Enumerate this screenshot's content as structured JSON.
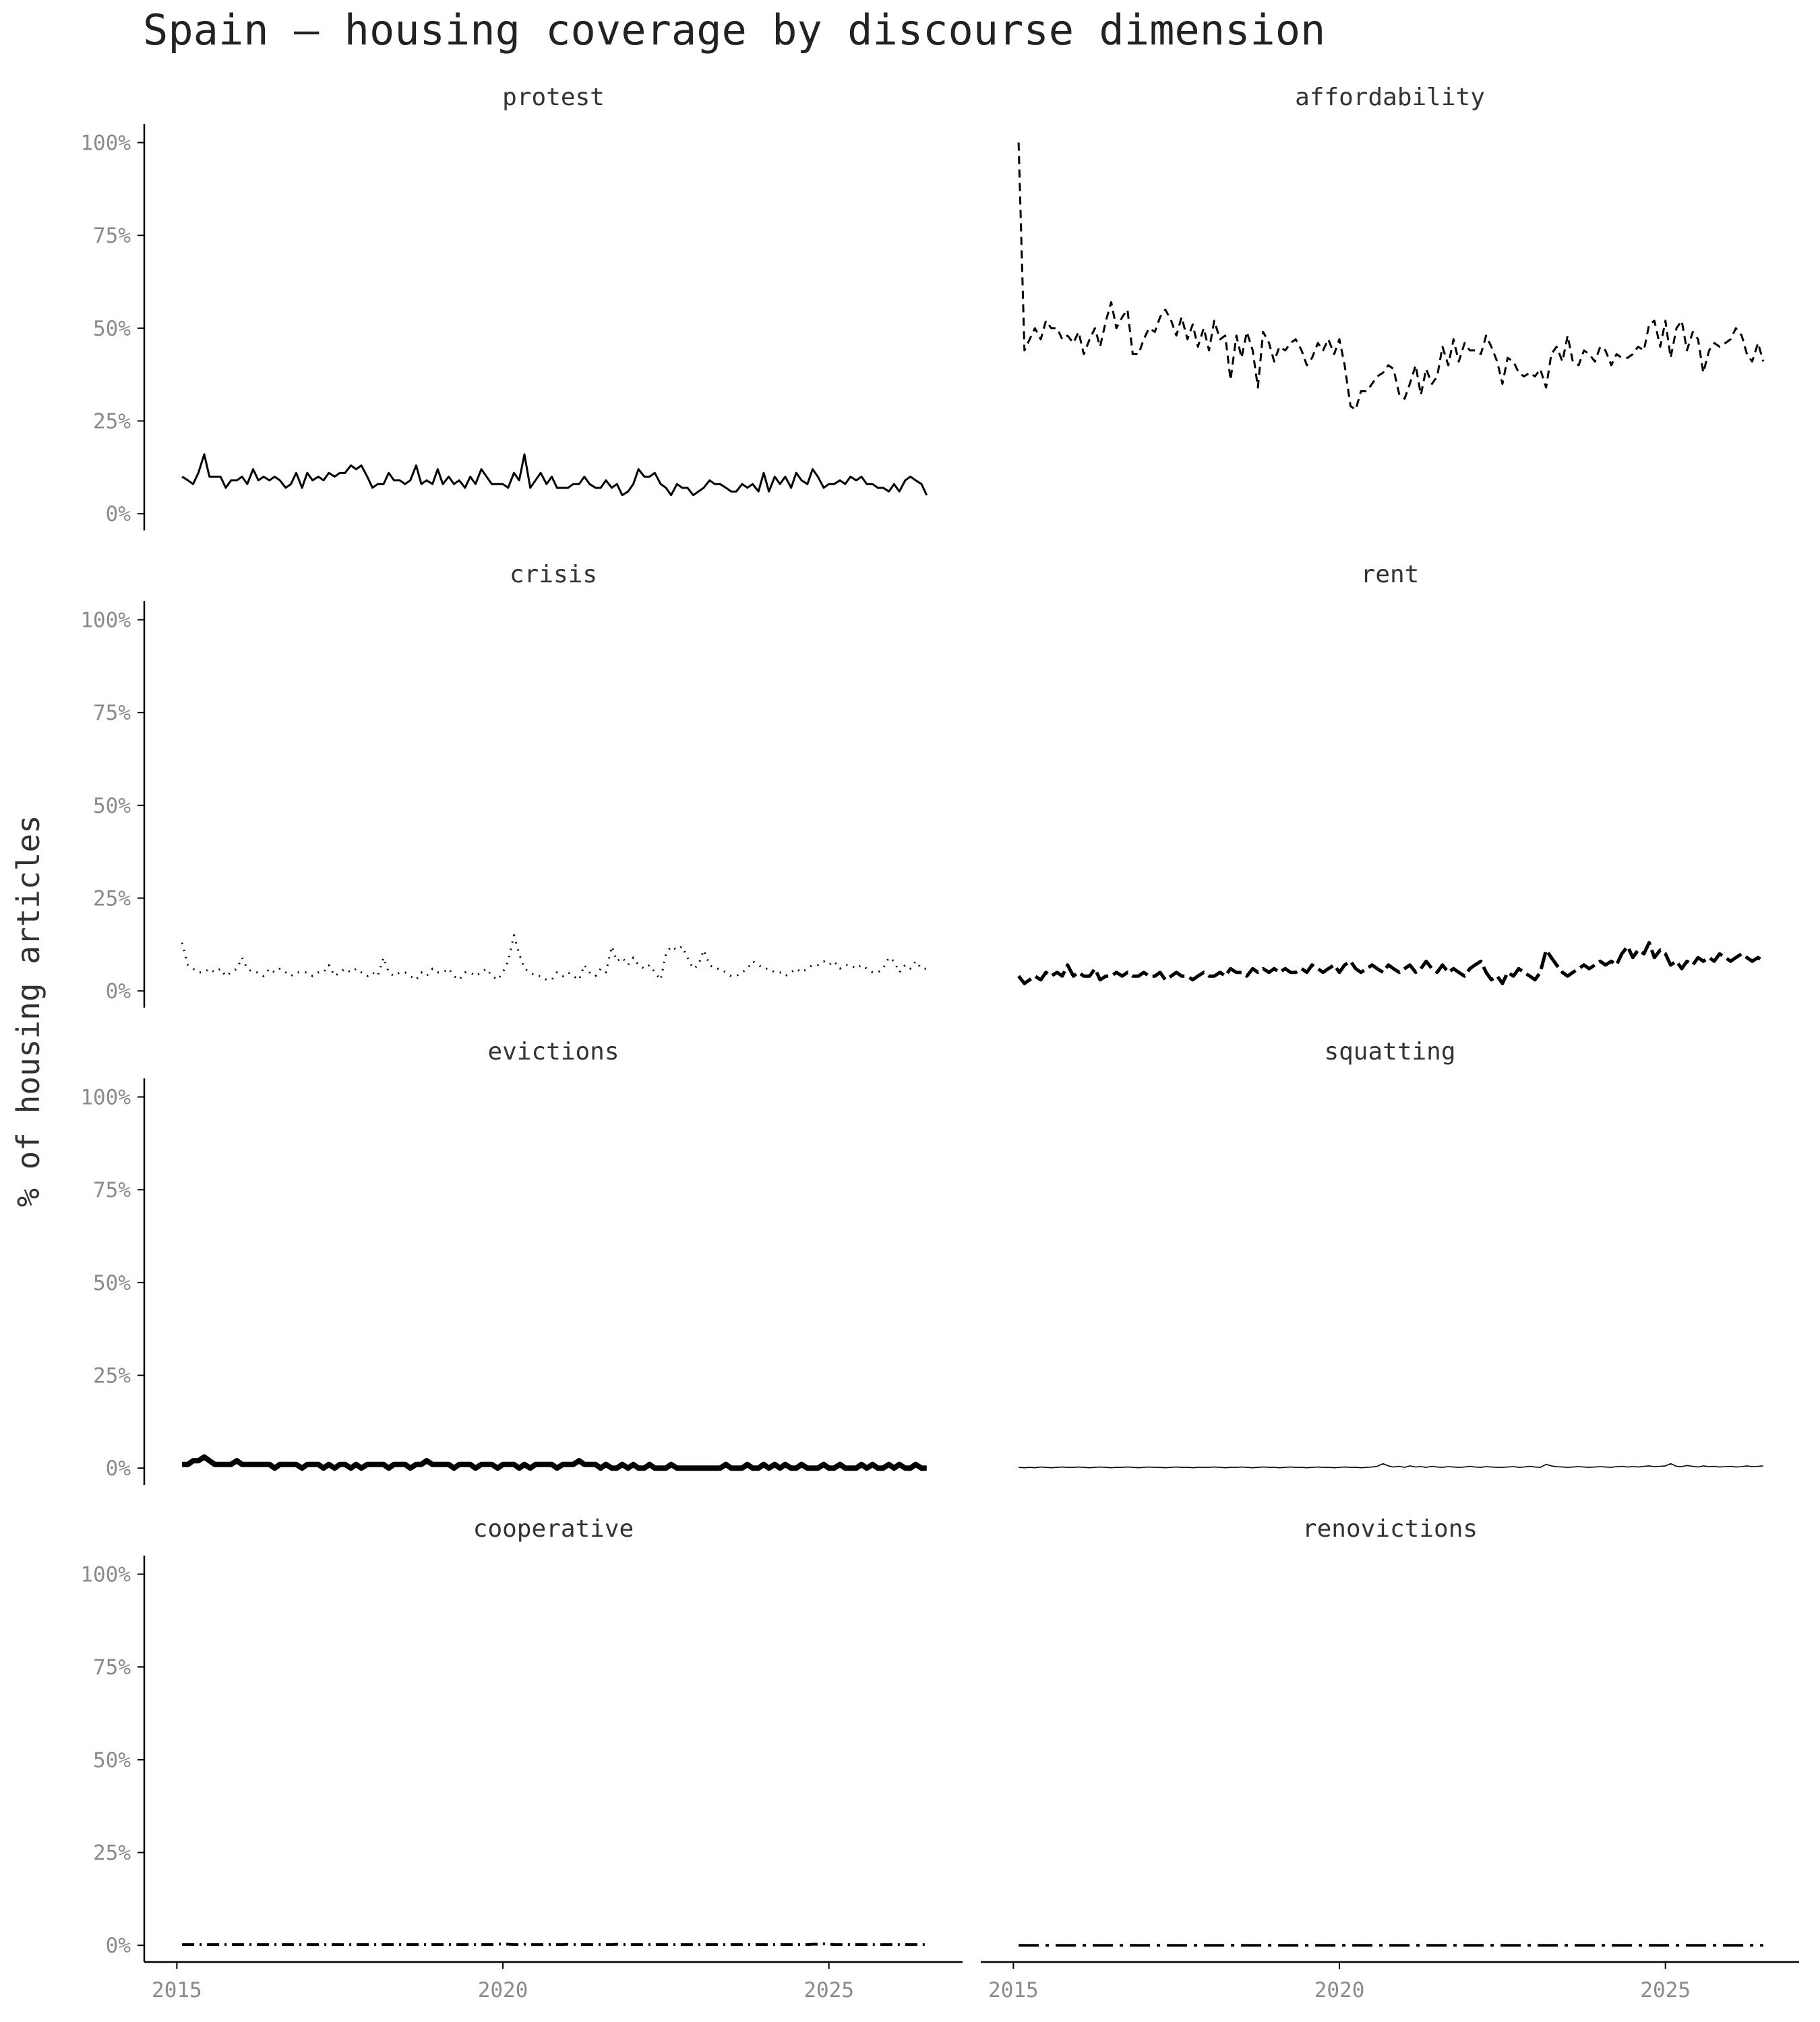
{
  "chart_data": {
    "type": "line",
    "title": "Spain — housing coverage by discourse dimension",
    "ylabel": "% of housing articles",
    "color": "#000000",
    "xlim": [
      2014.5,
      2027.05
    ],
    "xticks": [
      2015,
      2020,
      2025
    ],
    "ylim": [
      -4.5,
      105
    ],
    "yticks": [
      {
        "value": 0,
        "label": "0%"
      },
      {
        "value": 25,
        "label": "25%"
      },
      {
        "value": 50,
        "label": "50%"
      },
      {
        "value": 75,
        "label": "75%"
      },
      {
        "value": 100,
        "label": "100%"
      }
    ],
    "x": [
      2015.08,
      2015.17,
      2015.25,
      2015.33,
      2015.42,
      2015.5,
      2015.58,
      2015.67,
      2015.75,
      2015.83,
      2015.92,
      2016,
      2016.08,
      2016.17,
      2016.25,
      2016.33,
      2016.42,
      2016.5,
      2016.58,
      2016.67,
      2016.75,
      2016.83,
      2016.92,
      2017,
      2017.08,
      2017.17,
      2017.25,
      2017.33,
      2017.42,
      2017.5,
      2017.58,
      2017.67,
      2017.75,
      2017.83,
      2017.92,
      2018,
      2018.08,
      2018.17,
      2018.25,
      2018.33,
      2018.42,
      2018.5,
      2018.58,
      2018.67,
      2018.75,
      2018.83,
      2018.92,
      2019,
      2019.08,
      2019.17,
      2019.25,
      2019.33,
      2019.42,
      2019.5,
      2019.58,
      2019.67,
      2019.75,
      2019.83,
      2019.92,
      2020,
      2020.08,
      2020.17,
      2020.25,
      2020.33,
      2020.42,
      2020.5,
      2020.58,
      2020.67,
      2020.75,
      2020.83,
      2020.92,
      2021,
      2021.08,
      2021.17,
      2021.25,
      2021.33,
      2021.42,
      2021.5,
      2021.58,
      2021.67,
      2021.75,
      2021.83,
      2021.92,
      2022,
      2022.08,
      2022.17,
      2022.25,
      2022.33,
      2022.42,
      2022.5,
      2022.58,
      2022.67,
      2022.75,
      2022.83,
      2022.92,
      2023,
      2023.08,
      2023.17,
      2023.25,
      2023.33,
      2023.42,
      2023.5,
      2023.58,
      2023.67,
      2023.75,
      2023.83,
      2023.92,
      2024,
      2024.08,
      2024.17,
      2024.25,
      2024.33,
      2024.42,
      2024.5,
      2024.58,
      2024.67,
      2024.75,
      2024.83,
      2024.92,
      2025,
      2025.08,
      2025.17,
      2025.25,
      2025.33,
      2025.42,
      2025.5,
      2025.58,
      2025.67,
      2025.75,
      2025.83,
      2025.92,
      2026,
      2026.08,
      2026.17,
      2026.25,
      2026.33,
      2026.42,
      2026.5
    ],
    "series": [
      {
        "name": "protest",
        "style": "solid",
        "values": [
          10,
          9,
          8,
          11,
          16,
          10,
          10,
          10,
          7,
          9,
          9,
          10,
          8,
          12,
          9,
          10,
          9,
          10,
          9,
          7,
          8,
          11,
          7,
          11,
          9,
          10,
          9,
          11,
          10,
          11,
          11,
          13,
          12,
          13,
          10,
          7,
          8,
          8,
          11,
          9,
          9,
          8,
          9,
          13,
          8,
          9,
          8,
          12,
          8,
          10,
          8,
          9,
          7,
          10,
          8,
          12,
          10,
          8,
          8,
          8,
          7,
          11,
          9,
          16,
          7,
          9,
          11,
          8,
          10,
          7,
          7,
          7,
          8,
          8,
          10,
          8,
          7,
          7,
          9,
          7,
          8,
          5,
          6,
          8,
          12,
          10,
          10,
          11,
          8,
          7,
          5,
          8,
          7,
          7,
          5,
          6,
          7,
          9,
          8,
          8,
          7,
          6,
          6,
          8,
          7,
          8,
          6,
          11,
          6,
          10,
          8,
          10,
          7,
          11,
          9,
          8,
          12,
          10,
          7,
          8,
          8,
          9,
          8,
          10,
          9,
          10,
          8,
          8,
          7,
          7,
          6,
          8,
          6,
          9,
          10,
          9,
          8,
          5
        ]
      },
      {
        "name": "affordability",
        "style": "dashed",
        "values": [
          100,
          44,
          47,
          50,
          47,
          52,
          50,
          50,
          47,
          48,
          46,
          49,
          43,
          47,
          50,
          45,
          52,
          57,
          50,
          53,
          55,
          43,
          43,
          47,
          50,
          49,
          53,
          55,
          52,
          48,
          53,
          47,
          51,
          45,
          50,
          44,
          52,
          47,
          48,
          36,
          48,
          42,
          49,
          44,
          34,
          49,
          46,
          41,
          45,
          44,
          46,
          47,
          44,
          40,
          42,
          46,
          44,
          47,
          43,
          47,
          40,
          29,
          28,
          33,
          33,
          35,
          37,
          38,
          40,
          39,
          32,
          31,
          35,
          40,
          32,
          39,
          35,
          37,
          45,
          40,
          47,
          41,
          46,
          44,
          44,
          43,
          48,
          45,
          41,
          35,
          42,
          41,
          38,
          37,
          38,
          37,
          39,
          34,
          43,
          45,
          41,
          48,
          41,
          40,
          44,
          43,
          41,
          45,
          44,
          40,
          43,
          42,
          42,
          43,
          45,
          44,
          51,
          52,
          45,
          52,
          42,
          50,
          52,
          44,
          49,
          47,
          38,
          44,
          46,
          45,
          46,
          47,
          50,
          48,
          43,
          41,
          46,
          41
        ]
      },
      {
        "name": "crisis",
        "style": "dotted",
        "values": [
          13,
          7,
          6,
          5,
          5,
          6,
          5,
          6,
          4,
          5,
          6,
          9,
          6,
          5,
          5,
          4,
          6,
          5,
          6,
          5,
          4,
          5,
          5,
          5,
          4,
          5,
          5,
          7,
          4,
          5,
          6,
          5,
          6,
          5,
          4,
          5,
          4,
          9,
          5,
          4,
          5,
          5,
          4,
          3,
          5,
          4,
          6,
          5,
          5,
          6,
          4,
          3,
          5,
          5,
          4,
          5,
          6,
          4,
          3,
          5,
          8,
          15,
          10,
          6,
          5,
          4,
          4,
          3,
          3,
          5,
          4,
          5,
          4,
          3,
          7,
          5,
          4,
          6,
          5,
          12,
          8,
          9,
          7,
          9,
          7,
          6,
          7,
          5,
          3,
          10,
          12,
          11,
          12,
          9,
          6,
          7,
          11,
          7,
          6,
          6,
          5,
          4,
          4,
          5,
          6,
          8,
          7,
          6,
          6,
          5,
          5,
          4,
          5,
          6,
          5,
          6,
          7,
          7,
          8,
          7,
          8,
          6,
          7,
          7,
          6,
          7,
          6,
          5,
          5,
          6,
          9,
          8,
          5,
          7,
          6,
          8,
          6,
          6
        ]
      },
      {
        "name": "rent",
        "style": "longdash",
        "values": [
          4,
          2,
          3,
          4,
          3,
          5,
          4,
          5,
          4,
          7,
          4,
          5,
          4,
          4,
          6,
          3,
          4,
          4,
          5,
          4,
          5,
          4,
          4,
          5,
          4,
          4,
          5,
          3,
          4,
          5,
          4,
          4,
          3,
          4,
          5,
          4,
          4,
          5,
          4,
          6,
          5,
          5,
          4,
          6,
          5,
          6,
          5,
          6,
          5,
          6,
          5,
          5,
          6,
          5,
          7,
          6,
          5,
          6,
          7,
          5,
          7,
          8,
          6,
          5,
          6,
          7,
          6,
          5,
          7,
          6,
          5,
          6,
          7,
          5,
          6,
          8,
          6,
          5,
          7,
          5,
          6,
          5,
          4,
          6,
          7,
          8,
          5,
          3,
          4,
          2,
          5,
          4,
          6,
          5,
          4,
          3,
          5,
          11,
          9,
          7,
          5,
          4,
          5,
          6,
          7,
          6,
          7,
          8,
          7,
          8,
          7,
          10,
          12,
          9,
          11,
          10,
          13,
          9,
          11,
          10,
          7,
          8,
          6,
          8,
          7,
          9,
          8,
          9,
          8,
          10,
          9,
          8,
          9,
          10,
          9,
          8,
          9,
          8
        ]
      },
      {
        "name": "evictions",
        "style": "thick",
        "values": [
          1,
          1,
          2,
          2,
          3,
          2,
          1,
          1,
          1,
          1,
          2,
          1,
          1,
          1,
          1,
          1,
          1,
          0,
          1,
          1,
          1,
          1,
          0,
          1,
          1,
          1,
          0,
          1,
          0,
          1,
          1,
          0,
          1,
          0,
          1,
          1,
          1,
          1,
          0,
          1,
          1,
          1,
          0,
          1,
          1,
          2,
          1,
          1,
          1,
          1,
          0,
          1,
          1,
          1,
          0,
          1,
          1,
          1,
          0,
          1,
          1,
          1,
          0,
          1,
          0,
          1,
          1,
          1,
          1,
          0,
          1,
          1,
          1,
          2,
          1,
          1,
          1,
          0,
          1,
          0,
          0,
          1,
          0,
          1,
          0,
          0,
          1,
          0,
          0,
          0,
          1,
          0,
          0,
          0,
          0,
          0,
          0,
          0,
          0,
          0,
          1,
          0,
          0,
          0,
          1,
          0,
          0,
          1,
          0,
          1,
          0,
          1,
          0,
          0,
          1,
          0,
          0,
          0,
          1,
          0,
          0,
          1,
          0,
          0,
          0,
          1,
          0,
          1,
          0,
          0,
          1,
          0,
          1,
          0,
          0,
          1,
          0,
          0
        ]
      },
      {
        "name": "squatting",
        "style": "thin",
        "values": [
          0.2,
          0.1,
          0.2,
          0.1,
          0.3,
          0.2,
          0.1,
          0.2,
          0.3,
          0.2,
          0.2,
          0.3,
          0.2,
          0.1,
          0.2,
          0.3,
          0.2,
          0.1,
          0.2,
          0.2,
          0.3,
          0.2,
          0.1,
          0.2,
          0.3,
          0.2,
          0.2,
          0.1,
          0.2,
          0.3,
          0.2,
          0.2,
          0.1,
          0.2,
          0.2,
          0.2,
          0.3,
          0.2,
          0.1,
          0.2,
          0.2,
          0.3,
          0.2,
          0.1,
          0.2,
          0.3,
          0.2,
          0.2,
          0.1,
          0.2,
          0.3,
          0.2,
          0.2,
          0.1,
          0.2,
          0.3,
          0.2,
          0.2,
          0.1,
          0.2,
          0.3,
          0.2,
          0.2,
          0.1,
          0.2,
          0.3,
          0.5,
          1.2,
          0.6,
          0.3,
          0.5,
          0.2,
          0.6,
          0.3,
          0.4,
          0.2,
          0.5,
          0.3,
          0.2,
          0.4,
          0.3,
          0.2,
          0.3,
          0.5,
          0.3,
          0.2,
          0.4,
          0.3,
          0.2,
          0.2,
          0.3,
          0.4,
          0.2,
          0.3,
          0.5,
          0.3,
          0.2,
          1.0,
          0.6,
          0.4,
          0.3,
          0.2,
          0.3,
          0.4,
          0.3,
          0.2,
          0.3,
          0.4,
          0.3,
          0.2,
          0.4,
          0.5,
          0.3,
          0.4,
          0.3,
          0.5,
          0.6,
          0.4,
          0.5,
          0.6,
          1.2,
          0.5,
          0.4,
          0.7,
          0.5,
          0.3,
          0.6,
          0.4,
          0.5,
          0.3,
          0.4,
          0.5,
          0.3,
          0.4,
          0.6,
          0.4,
          0.5,
          0.6
        ]
      },
      {
        "name": "cooperative",
        "style": "dotdash",
        "values": [
          0.2,
          0.2,
          0.2,
          0.2,
          0.2,
          0.2,
          0.2,
          0.2,
          0.2,
          0.2,
          0.2,
          0.2,
          0.2,
          0.2,
          0.2,
          0.2,
          0.2,
          0.2,
          0.2,
          0.2,
          0.2,
          0.2,
          0.2,
          0.2,
          0.2,
          0.2,
          0.2,
          0.2,
          0.2,
          0.2,
          0.2,
          0.2,
          0.2,
          0.2,
          0.2,
          0.2,
          0.2,
          0.2,
          0.2,
          0.2,
          0.2,
          0.2,
          0.2,
          0.2,
          0.2,
          0.2,
          0.2,
          0.2,
          0.2,
          0.2,
          0.2,
          0.2,
          0.2,
          0.2,
          0.2,
          0.2,
          0.2,
          0.2,
          0.3,
          0.4,
          0.3,
          0.2,
          0.2,
          0.3,
          0.2,
          0.2,
          0.2,
          0.3,
          0.2,
          0.2,
          0.2,
          0.3,
          0.2,
          0.2,
          0.2,
          0.2,
          0.2,
          0.2,
          0.2,
          0.2,
          0.3,
          0.2,
          0.2,
          0.2,
          0.2,
          0.2,
          0.2,
          0.2,
          0.2,
          0.2,
          0.2,
          0.2,
          0.2,
          0.2,
          0.2,
          0.2,
          0.2,
          0.2,
          0.2,
          0.2,
          0.2,
          0.2,
          0.2,
          0.2,
          0.2,
          0.2,
          0.2,
          0.2,
          0.2,
          0.2,
          0.2,
          0.2,
          0.2,
          0.2,
          0.2,
          0.2,
          0.3,
          0.3,
          0.4,
          0.3,
          0.2,
          0.2,
          0.2,
          0.2,
          0.2,
          0.2,
          0.2,
          0.2,
          0.2,
          0.2,
          0.2,
          0.2,
          0.2,
          0.2,
          0.2,
          0.2,
          0.2,
          0.2
        ]
      },
      {
        "name": "renovictions",
        "style": "twodash",
        "values": [
          0,
          0,
          0,
          0,
          0,
          0,
          0,
          0,
          0,
          0,
          0,
          0,
          0,
          0,
          0,
          0,
          0,
          0,
          0,
          0,
          0,
          0,
          0,
          0,
          0,
          0,
          0,
          0,
          0,
          0,
          0,
          0,
          0,
          0,
          0,
          0,
          0,
          0,
          0,
          0,
          0,
          0,
          0,
          0,
          0,
          0,
          0,
          0,
          0,
          0,
          0,
          0,
          0,
          0,
          0,
          0,
          0,
          0,
          0,
          0,
          0,
          0,
          0,
          0,
          0,
          0,
          0,
          0,
          0,
          0,
          0,
          0,
          0,
          0,
          0,
          0,
          0,
          0,
          0,
          0,
          0,
          0,
          0,
          0,
          0,
          0,
          0,
          0,
          0,
          0,
          0,
          0,
          0,
          0,
          0,
          0,
          0,
          0,
          0,
          0,
          0,
          0,
          0,
          0,
          0,
          0,
          0,
          0,
          0,
          0,
          0,
          0,
          0,
          0,
          0,
          0,
          0,
          0,
          0,
          0,
          0,
          0,
          0,
          0,
          0,
          0,
          0,
          0,
          0,
          0,
          0,
          0,
          0,
          0,
          0,
          0,
          0,
          0
        ]
      }
    ]
  }
}
